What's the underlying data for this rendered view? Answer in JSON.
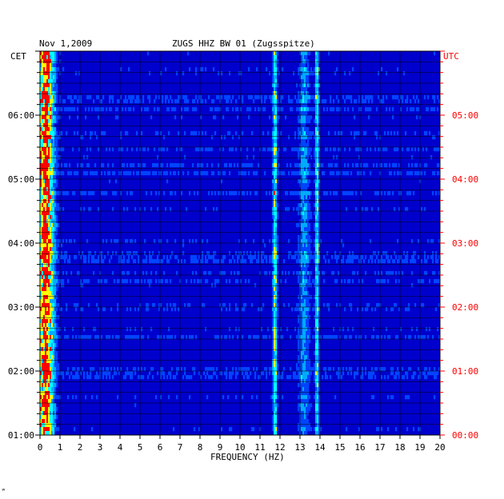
{
  "chart_data": {
    "type": "heatmap",
    "title": "ZUGS HHZ BW 01 (Zugsspitze)",
    "date": "Nov 1,2009",
    "xlabel": "FREQUENCY (HZ)",
    "left_axis_label": "CET",
    "right_axis_label": "UTC",
    "xlim": [
      0,
      20
    ],
    "x_ticks": [
      "0",
      "1",
      "2",
      "3",
      "4",
      "5",
      "6",
      "7",
      "8",
      "9",
      "10",
      "11",
      "12",
      "13",
      "14",
      "15",
      "16",
      "17",
      "18",
      "19",
      "20"
    ],
    "left_ticks": [
      "06:00",
      "05:00",
      "04:00",
      "03:00",
      "02:00",
      "01:00"
    ],
    "right_ticks": [
      "05:00",
      "04:00",
      "03:00",
      "02:00",
      "01:00",
      "00:00"
    ],
    "time_range_utc_hours": [
      0,
      6
    ],
    "rows": 96,
    "colormap": [
      "#00008b",
      "#0000cd",
      "#0044ff",
      "#00aaff",
      "#00ffff",
      "#ffff00",
      "#ff0000"
    ],
    "persistent_bands_hz": [
      {
        "center": 0.3,
        "width": 0.6,
        "strength": 0.75
      },
      {
        "center": 11.75,
        "width": 0.15,
        "strength": 0.6
      },
      {
        "center": 13.85,
        "width": 0.15,
        "strength": 0.55
      },
      {
        "center": 13.2,
        "width": 0.4,
        "strength": 0.3
      }
    ],
    "grid": true,
    "colors": {
      "left_axis": "#000000",
      "right_axis": "#ff0000",
      "grid": "#000000"
    }
  },
  "extra": {
    "corner_mark": "ʷ"
  }
}
